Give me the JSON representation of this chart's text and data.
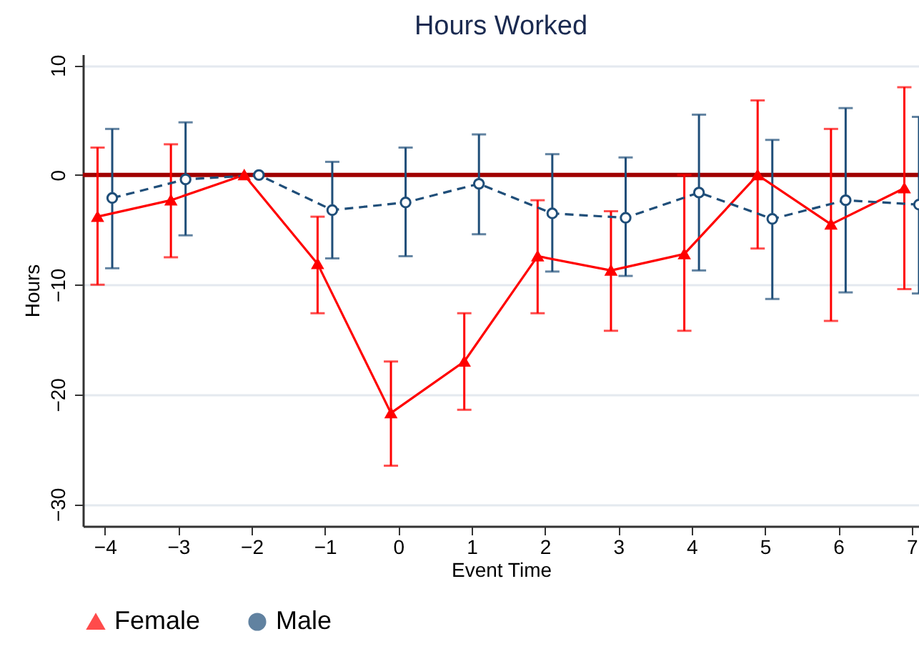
{
  "chart_data": {
    "type": "line",
    "title": "Hours Worked",
    "xlabel": "Event Time",
    "ylabel": "Hours",
    "xlim": [
      -4.3,
      7.1
    ],
    "xticks": [
      -4,
      -3,
      -2,
      -1,
      0,
      1,
      2,
      3,
      4,
      5,
      6,
      7
    ],
    "ylim": [
      -32,
      11
    ],
    "yticks": [
      -30,
      -20,
      -10,
      0,
      10
    ],
    "grid": "y",
    "legend": "bottom",
    "ref_lines": [
      {
        "axis": "y",
        "value": 0,
        "color": "#a00000"
      }
    ],
    "series": [
      {
        "name": "Female",
        "color": "#ff0000",
        "marker": "triangle",
        "line_style": "solid",
        "x": [
          -4.1,
          -3.1,
          -2.1,
          -1.1,
          -0.1,
          0.9,
          1.9,
          2.9,
          3.9,
          4.9,
          5.9,
          6.9
        ],
        "values": [
          -3.8,
          -2.3,
          0,
          -8.1,
          -21.7,
          -17,
          -7.4,
          -8.7,
          -7.2,
          0,
          -4.5,
          -1.2
        ],
        "errors": [
          [
            -10,
            2.5
          ],
          [
            -7.5,
            2.8
          ],
          null,
          [
            -12.6,
            -3.8
          ],
          [
            -26.5,
            -17
          ],
          [
            -21.4,
            -12.6
          ],
          [
            -12.6,
            -2.3
          ],
          [
            -14.2,
            -3.3
          ],
          [
            -14.2,
            0
          ],
          [
            -6.7,
            6.8
          ],
          [
            -13.3,
            4.2
          ],
          [
            -10.4,
            8
          ]
        ]
      },
      {
        "name": "Male",
        "color": "#1f4e79",
        "marker": "circle",
        "line_style": "dashed",
        "x": [
          -3.9,
          -2.9,
          -1.9,
          -0.9,
          0.1,
          1.1,
          2.1,
          3.1,
          4.1,
          5.1,
          6.1,
          7.1
        ],
        "values": [
          -2.1,
          -0.4,
          0,
          -3.2,
          -2.5,
          -0.8,
          -3.5,
          -3.9,
          -1.6,
          -4,
          -2.3,
          -2.7
        ],
        "errors": [
          [
            -8.5,
            4.2
          ],
          [
            -5.5,
            4.8
          ],
          null,
          [
            -7.6,
            1.2
          ],
          [
            -7.4,
            2.5
          ],
          [
            -5.4,
            3.7
          ],
          [
            -8.8,
            1.9
          ],
          [
            -9.2,
            1.6
          ],
          [
            -8.7,
            5.5
          ],
          [
            -11.3,
            3.2
          ],
          [
            -10.7,
            6.1
          ],
          [
            -10.8,
            5.3
          ]
        ]
      }
    ]
  }
}
